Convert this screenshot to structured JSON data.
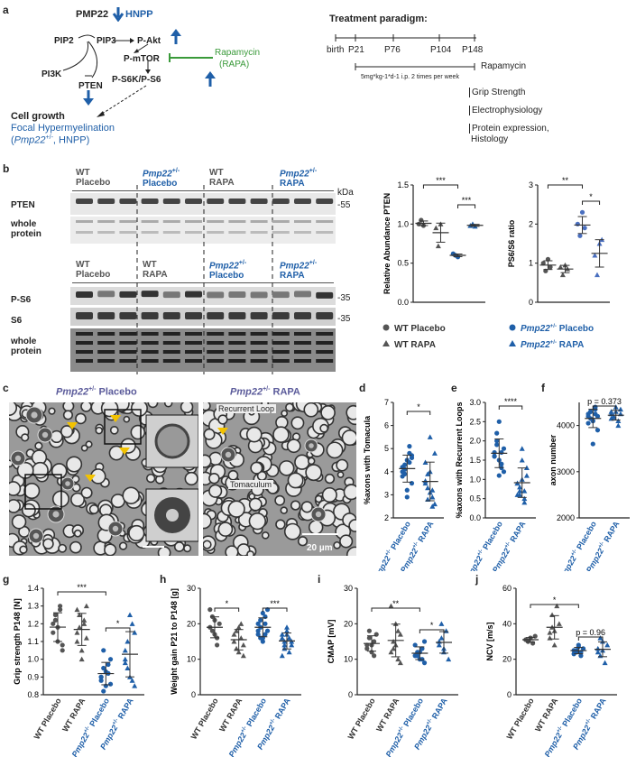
{
  "panels": [
    "a",
    "b",
    "c",
    "d",
    "e",
    "f",
    "g",
    "h",
    "i",
    "j"
  ],
  "pathway": {
    "pmp22": "PMP22",
    "hnpp": "HNPP",
    "pip2": "PIP2",
    "pip3": "PIP3",
    "pakt": "P-Akt",
    "pi3k": "PI3K",
    "pten": "PTEN",
    "pmtor": "P-mTOR",
    "ps6k": "P-S6K/P-S6",
    "rapa1": "Rapamycin",
    "rapa2": "(RAPA)",
    "cell_growth": "Cell growth",
    "focal": "Focal Hypermyelination",
    "focal2_pre": "(",
    "focal2_gene": "Pmp22",
    "focal2_sup": "+/-",
    "focal2_post": ", HNPP)"
  },
  "treatment": {
    "title": "Treatment paradigm:",
    "timepoints": [
      "birth",
      "P21",
      "P76",
      "P104",
      "P148"
    ],
    "drug": "Rapamycin",
    "dose": "5mg*kg-1*d-1 i.p. 2 times per week",
    "readouts": [
      "Grip Strength",
      "Electrophysiology",
      "Protein expression,",
      "Histology"
    ]
  },
  "blot": {
    "top_groups": [
      [
        "WT",
        "Placebo"
      ],
      [
        "Pmp22",
        "Placebo"
      ],
      [
        "WT",
        "RAPA"
      ],
      [
        "Pmp22",
        "RAPA"
      ]
    ],
    "bottom_groups": [
      [
        "WT",
        "Placebo"
      ],
      [
        "WT",
        "RAPA"
      ],
      [
        "Pmp22",
        "Placebo"
      ],
      [
        "Pmp22",
        "RAPA"
      ]
    ],
    "sup": "+/-",
    "rows_top": [
      "PTEN",
      "whole",
      "protein"
    ],
    "rows_bottom": [
      "P-S6",
      "S6",
      "whole",
      "protein"
    ],
    "kda": "kDa",
    "m55": "-55",
    "m35a": "-35",
    "m35b": "-35"
  },
  "quant": {
    "pten_ylabel": "Relative Abundance PTEN",
    "ps6_ylabel": "PS6/S6 ratio",
    "pten_ticks": [
      "0.0",
      "0.5",
      "1.0",
      "1.5"
    ],
    "ps6_ticks": [
      "0",
      "1",
      "2",
      "3"
    ],
    "pten_sig": [
      "***",
      "***"
    ],
    "ps6_sig": [
      "**",
      "*"
    ],
    "legend": [
      "WT Placebo",
      "Pmp22",
      "Placebo",
      "WT RAPA",
      "Pmp22",
      "RAPA"
    ],
    "sup": "+/-"
  },
  "histo": {
    "title_left_gene": "Pmp22",
    "title_left_sup": "+/-",
    "title_left": "Placebo",
    "title_right_gene": "Pmp22",
    "title_right_sup": "+/-",
    "title_right": "RAPA",
    "inset1": "Recurrent Loop",
    "inset2": "Tomaculum",
    "scale": "20 µm"
  },
  "small_plots": {
    "d_ylabel": "%axons with Tomacula",
    "d_ticks": [
      "2",
      "3",
      "4",
      "5",
      "6",
      "7"
    ],
    "d_sig": "*",
    "e_ylabel": "%axons with Recurrent Loops",
    "e_ticks": [
      "0.0",
      "0.5",
      "1.0",
      "1.5",
      "2.0",
      "2.5",
      "3.0"
    ],
    "e_sig": "****",
    "f_ylabel": "axon number",
    "f_ticks": [
      "2000",
      "3000",
      "4000"
    ],
    "f_sig": "p = 0.373",
    "xcats_gene": "Pmp22",
    "xcats_sup": "+/-",
    "xcats": [
      "Placebo",
      "RAPA"
    ]
  },
  "bottom_plots": {
    "g_ylabel": "Grip strength P148 [N]",
    "g_ticks": [
      "0.8",
      "0.9",
      "1.0",
      "1.1",
      "1.2",
      "1.3",
      "1.4",
      "1.6"
    ],
    "g_sig": [
      "***",
      "*"
    ],
    "h_ylabel": "Weight gain P21 to P148 [g]",
    "h_ticks": [
      "0",
      "10",
      "20",
      "30"
    ],
    "h_sig": [
      "*",
      "***"
    ],
    "i_ylabel": "CMAP [mV]",
    "i_ticks": [
      "0",
      "10",
      "20",
      "30"
    ],
    "i_sig": [
      "**",
      "*"
    ],
    "j_ylabel": "NCV [m/s]",
    "j_ticks": [
      "0",
      "20",
      "40",
      "60"
    ],
    "j_sig": [
      "*",
      "p = 0.96"
    ],
    "xcats": [
      "WT Placebo",
      "WT RAPA",
      "Pmp22",
      "Placebo",
      "Pmp22",
      "RAPA"
    ],
    "sup": "+/-"
  },
  "chart_data": [
    {
      "type": "scatter",
      "panel": "b-left",
      "ylabel": "Relative Abundance PTEN",
      "ylim": [
        0,
        1.5
      ],
      "series": [
        {
          "values": [
            1.0,
            1.05,
            0.98
          ]
        },
        {
          "values": [
            0.95,
            0.72,
            1.0
          ]
        },
        {
          "values": [
            0.62,
            0.6,
            0.58
          ]
        },
        {
          "values": [
            0.98,
            1.0,
            0.97
          ]
        }
      ]
    },
    {
      "type": "scatter",
      "panel": "b-right",
      "ylabel": "PS6/S6 ratio",
      "ylim": [
        0,
        3
      ],
      "series": [
        {
          "values": [
            1.0,
            0.8,
            1.1,
            0.9
          ]
        },
        {
          "values": [
            0.9,
            0.7,
            0.95,
            0.85
          ]
        },
        {
          "values": [
            2.0,
            1.7,
            2.3,
            1.9
          ]
        },
        {
          "values": [
            1.2,
            0.7,
            1.5,
            1.6
          ]
        }
      ]
    },
    {
      "type": "scatter",
      "panel": "d",
      "ylabel": "%axons with Tomacula",
      "ylim": [
        2,
        7
      ],
      "series": [
        {
          "values": [
            4.2,
            3.9,
            4.5,
            4.8,
            3.5,
            4.0,
            4.3,
            3.2,
            5.1,
            4.6,
            3.8,
            4.1,
            2.9,
            4.4,
            4.7
          ]
        },
        {
          "values": [
            3.5,
            2.8,
            4.0,
            3.2,
            2.6,
            4.4,
            3.9,
            3.1,
            2.5,
            4.8,
            3.6,
            3.3,
            5.5,
            2.9
          ]
        }
      ]
    },
    {
      "type": "scatter",
      "panel": "e",
      "ylabel": "%axons with Recurrent Loops",
      "ylim": [
        0,
        3
      ],
      "series": [
        {
          "values": [
            1.6,
            1.9,
            2.5,
            1.4,
            1.2,
            1.7,
            2.0,
            1.5,
            1.3,
            1.8,
            1.6,
            2.2,
            1.1,
            1.7
          ]
        },
        {
          "values": [
            0.9,
            0.7,
            1.0,
            0.5,
            1.3,
            0.6,
            0.8,
            1.5,
            0.4,
            1.1,
            0.9,
            0.6,
            1.8,
            0.7
          ]
        }
      ]
    },
    {
      "type": "scatter",
      "panel": "f",
      "ylabel": "axon number",
      "ylim": [
        2000,
        4500
      ],
      "series": [
        {
          "values": [
            4200,
            4300,
            4100,
            4350,
            3900,
            4250,
            4150,
            3600,
            4400,
            4200,
            4050,
            4300,
            4100,
            4250
          ]
        },
        {
          "values": [
            4250,
            4200,
            4300,
            4100,
            4350,
            4150,
            4200,
            4400,
            4000,
            4250,
            4300,
            4180
          ]
        }
      ]
    },
    {
      "type": "scatter",
      "panel": "g",
      "ylabel": "Grip strength P148 [N]",
      "ylim": [
        0.8,
        1.4
      ],
      "series": [
        {
          "values": [
            1.2,
            1.25,
            1.1,
            1.3,
            1.05,
            1.15,
            1.22,
            1.18,
            1.28,
            1.08
          ]
        },
        {
          "values": [
            1.15,
            1.25,
            1.05,
            1.2,
            1.3,
            1.1,
            1.18,
            1.0,
            1.22,
            1.12,
            1.28
          ]
        },
        {
          "values": [
            0.9,
            0.95,
            0.85,
            0.92,
            1.0,
            0.88,
            0.82,
            0.93,
            0.97,
            0.86,
            0.9,
            1.05
          ]
        },
        {
          "values": [
            1.0,
            1.1,
            0.9,
            1.2,
            0.85,
            1.05,
            0.95,
            1.25,
            0.88,
            1.15,
            0.98
          ]
        }
      ]
    },
    {
      "type": "scatter",
      "panel": "h",
      "ylabel": "Weight gain P21 to P148 [g]",
      "ylim": [
        0,
        30
      ],
      "series": [
        {
          "values": [
            19,
            22,
            17,
            14,
            20,
            24,
            18,
            21,
            16
          ]
        },
        {
          "values": [
            15,
            18,
            12,
            20,
            14,
            17,
            13,
            19,
            16,
            11
          ]
        },
        {
          "values": [
            18,
            21,
            16,
            20,
            24,
            17,
            19,
            15,
            22,
            18,
            20,
            16,
            23,
            17
          ]
        },
        {
          "values": [
            16,
            14,
            18,
            12,
            15,
            17,
            13,
            19,
            16,
            14,
            11,
            15,
            17
          ]
        }
      ]
    },
    {
      "type": "scatter",
      "panel": "i",
      "ylabel": "CMAP [mV]",
      "ylim": [
        0,
        30
      ],
      "series": [
        {
          "values": [
            14,
            16,
            12,
            15,
            17,
            13,
            18,
            14,
            11
          ]
        },
        {
          "values": [
            12,
            15,
            20,
            10,
            17,
            25,
            13,
            14,
            18,
            9
          ]
        },
        {
          "values": [
            11,
            12,
            10,
            13,
            9,
            14,
            11,
            12,
            10,
            15
          ]
        },
        {
          "values": [
            14,
            16,
            12,
            18,
            10,
            15,
            20,
            13
          ]
        }
      ]
    },
    {
      "type": "scatter",
      "panel": "j",
      "ylabel": "NCV [m/s]",
      "ylim": [
        0,
        60
      ],
      "series": [
        {
          "values": [
            31,
            30,
            32,
            29,
            33,
            31,
            30,
            32
          ]
        },
        {
          "values": [
            35,
            45,
            28,
            50,
            40,
            32,
            38,
            36
          ]
        },
        {
          "values": [
            25,
            24,
            27,
            22,
            26,
            23,
            25,
            28,
            24
          ]
        },
        {
          "values": [
            26,
            22,
            30,
            18,
            28,
            24,
            32,
            25
          ]
        }
      ]
    }
  ]
}
